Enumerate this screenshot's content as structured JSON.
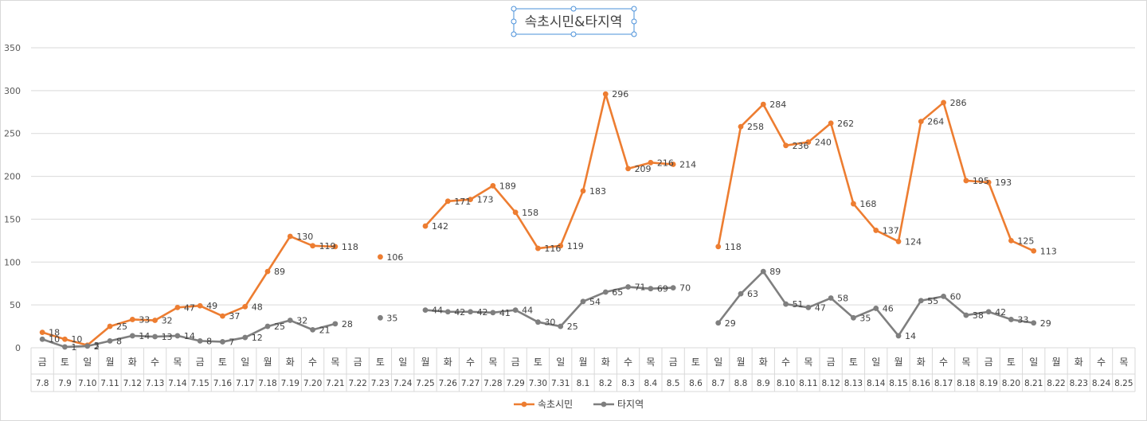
{
  "chart_data": {
    "type": "line",
    "title": "속초시민&타지역",
    "ylim": [
      0,
      350
    ],
    "yticks": [
      0,
      50,
      100,
      150,
      200,
      250,
      300,
      350
    ],
    "grid": true,
    "legend_position": "bottom",
    "categories": [
      "7.8",
      "7.9",
      "7.10",
      "7.11",
      "7.12",
      "7.13",
      "7.14",
      "7.15",
      "7.16",
      "7.17",
      "7.18",
      "7.19",
      "7.20",
      "7.21",
      "7.22",
      "7.23",
      "7.24",
      "7.25",
      "7.26",
      "7.27",
      "7.28",
      "7.29",
      "7.30",
      "7.31",
      "8.1",
      "8.2",
      "8.3",
      "8.4",
      "8.5",
      "8.6",
      "8.7",
      "8.8",
      "8.9",
      "8.10",
      "8.11",
      "8.12",
      "8.13",
      "8.14",
      "8.15",
      "8.16",
      "8.17",
      "8.18",
      "8.19",
      "8.20",
      "8.21",
      "8.22",
      "8.23",
      "8.24",
      "8.25"
    ],
    "weekdays": [
      "금",
      "토",
      "일",
      "월",
      "화",
      "수",
      "목",
      "금",
      "토",
      "일",
      "월",
      "화",
      "수",
      "목",
      "금",
      "토",
      "일",
      "월",
      "화",
      "수",
      "목",
      "금",
      "토",
      "일",
      "월",
      "화",
      "수",
      "목",
      "금",
      "토",
      "일",
      "월",
      "화",
      "수",
      "목",
      "금",
      "토",
      "일",
      "월",
      "화",
      "수",
      "목",
      "금",
      "토",
      "일",
      "월",
      "화",
      "수",
      "목"
    ],
    "series": [
      {
        "name": "속초시민",
        "color": "#ED7D31",
        "values": [
          18,
          10,
          3,
          25,
          33,
          32,
          47,
          49,
          37,
          48,
          89,
          130,
          119,
          118,
          null,
          106,
          null,
          142,
          171,
          173,
          189,
          158,
          116,
          119,
          183,
          296,
          209,
          216,
          214,
          null,
          118,
          258,
          284,
          236,
          240,
          262,
          168,
          137,
          124,
          264,
          286,
          195,
          193,
          125,
          113,
          null,
          null,
          null,
          null
        ]
      },
      {
        "name": "타지역",
        "color": "#7F7F7F",
        "values": [
          10,
          1,
          2,
          8,
          14,
          13,
          14,
          8,
          7,
          12,
          25,
          32,
          21,
          28,
          null,
          35,
          null,
          44,
          42,
          42,
          41,
          44,
          30,
          25,
          54,
          65,
          71,
          69,
          70,
          null,
          29,
          63,
          89,
          51,
          47,
          58,
          35,
          46,
          14,
          55,
          60,
          38,
          42,
          33,
          29,
          null,
          null,
          null,
          null
        ]
      }
    ]
  }
}
